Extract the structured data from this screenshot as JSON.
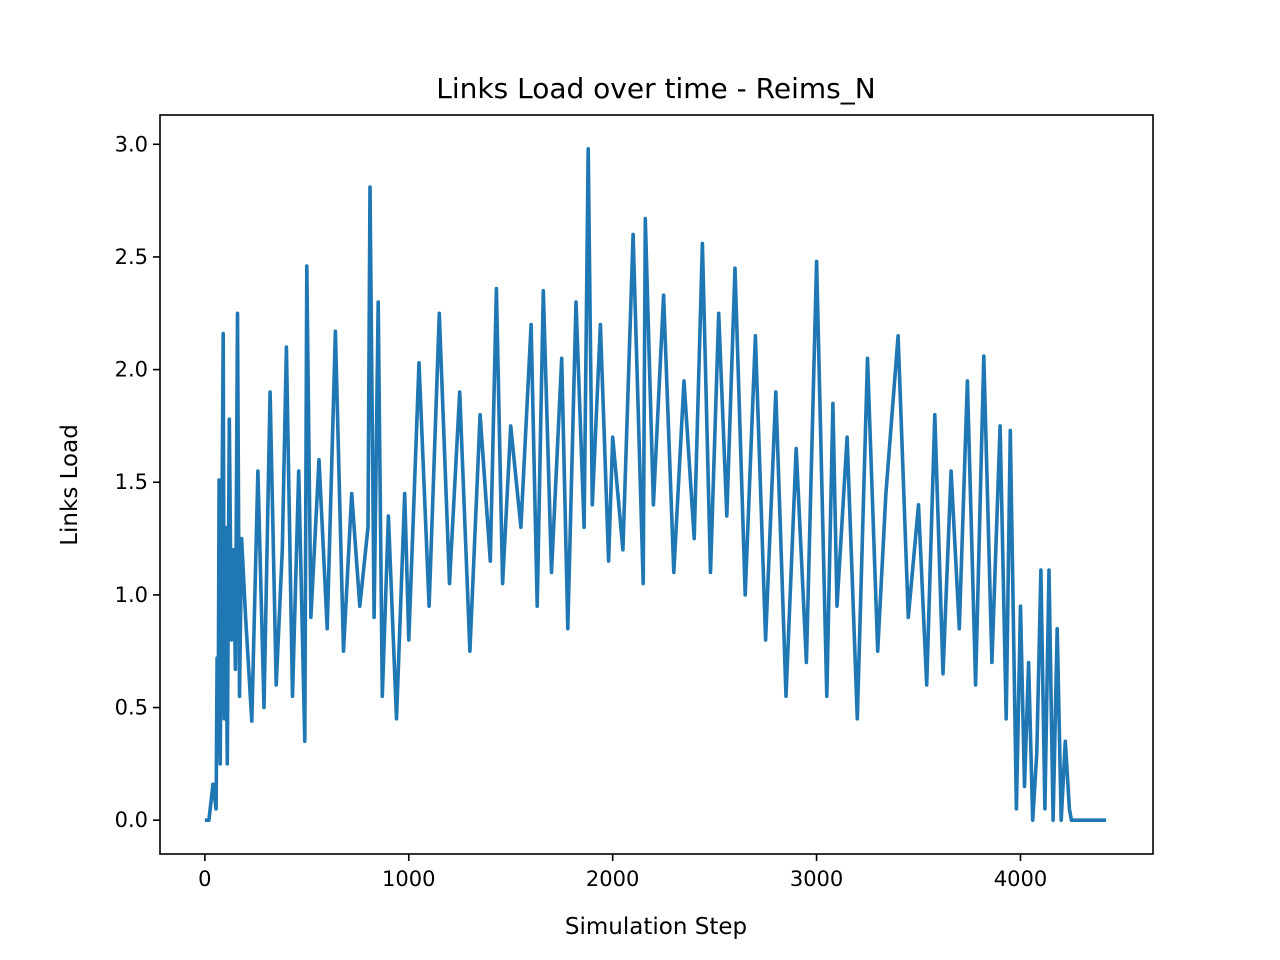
{
  "chart_data": {
    "type": "line",
    "title": "Links Load over time - Reims_N",
    "xlabel": "Simulation Step",
    "ylabel": "Links Load",
    "xlim": [
      -220,
      4650
    ],
    "ylim": [
      -0.15,
      3.13
    ],
    "x_ticks": [
      {
        "value": 0,
        "label": "0"
      },
      {
        "value": 1000,
        "label": "1000"
      },
      {
        "value": 2000,
        "label": "2000"
      },
      {
        "value": 3000,
        "label": "3000"
      },
      {
        "value": 4000,
        "label": "4000"
      }
    ],
    "y_ticks": [
      {
        "value": 0.0,
        "label": "0.0"
      },
      {
        "value": 0.5,
        "label": "0.5"
      },
      {
        "value": 1.0,
        "label": "1.0"
      },
      {
        "value": 1.5,
        "label": "1.5"
      },
      {
        "value": 2.0,
        "label": "2.0"
      },
      {
        "value": 2.5,
        "label": "2.5"
      },
      {
        "value": 3.0,
        "label": "3.0"
      }
    ],
    "grid": false,
    "series": [
      {
        "color": "#1f77b4",
        "x": [
          0,
          20,
          40,
          55,
          60,
          65,
          70,
          75,
          80,
          85,
          90,
          95,
          100,
          110,
          120,
          130,
          140,
          150,
          160,
          170,
          180,
          200,
          230,
          260,
          290,
          320,
          350,
          380,
          400,
          430,
          460,
          490,
          500,
          520,
          560,
          600,
          640,
          680,
          720,
          760,
          800,
          810,
          830,
          850,
          870,
          900,
          940,
          980,
          1000,
          1050,
          1100,
          1150,
          1200,
          1250,
          1300,
          1350,
          1400,
          1430,
          1460,
          1500,
          1550,
          1600,
          1630,
          1660,
          1700,
          1750,
          1780,
          1820,
          1860,
          1880,
          1900,
          1940,
          1980,
          2000,
          2050,
          2100,
          2150,
          2160,
          2200,
          2250,
          2300,
          2350,
          2400,
          2440,
          2480,
          2520,
          2560,
          2600,
          2650,
          2700,
          2750,
          2800,
          2850,
          2900,
          2950,
          3000,
          3050,
          3080,
          3100,
          3150,
          3200,
          3250,
          3300,
          3340,
          3400,
          3450,
          3500,
          3540,
          3580,
          3620,
          3660,
          3700,
          3740,
          3780,
          3820,
          3860,
          3900,
          3930,
          3950,
          3980,
          4000,
          4020,
          4040,
          4060,
          4080,
          4100,
          4120,
          4140,
          4160,
          4180,
          4200,
          4220,
          4240,
          4250,
          4300,
          4420
        ],
        "y": [
          0.0,
          0.0,
          0.16,
          0.05,
          0.72,
          0.3,
          1.51,
          0.25,
          0.95,
          1.5,
          2.16,
          0.45,
          1.3,
          0.25,
          1.78,
          0.8,
          1.2,
          0.67,
          2.25,
          0.55,
          1.25,
          0.9,
          0.44,
          1.55,
          0.5,
          1.9,
          0.6,
          1.2,
          2.1,
          0.55,
          1.55,
          0.35,
          2.46,
          0.9,
          1.6,
          0.85,
          2.17,
          0.75,
          1.45,
          0.95,
          1.3,
          2.81,
          0.9,
          2.3,
          0.55,
          1.35,
          0.45,
          1.45,
          0.8,
          2.03,
          0.95,
          2.25,
          1.05,
          1.9,
          0.75,
          1.8,
          1.15,
          2.36,
          1.05,
          1.75,
          1.3,
          2.2,
          0.95,
          2.35,
          1.1,
          2.05,
          0.85,
          2.3,
          1.3,
          2.98,
          1.4,
          2.2,
          1.15,
          1.7,
          1.2,
          2.6,
          1.05,
          2.67,
          1.4,
          2.33,
          1.1,
          1.95,
          1.25,
          2.56,
          1.1,
          2.25,
          1.35,
          2.45,
          1.0,
          2.15,
          0.8,
          1.9,
          0.55,
          1.65,
          0.7,
          2.48,
          0.55,
          1.85,
          0.95,
          1.7,
          0.45,
          2.05,
          0.75,
          1.45,
          2.15,
          0.9,
          1.4,
          0.6,
          1.8,
          0.65,
          1.55,
          0.85,
          1.95,
          0.6,
          2.06,
          0.7,
          1.75,
          0.45,
          1.73,
          0.05,
          0.95,
          0.15,
          0.7,
          0.0,
          0.3,
          1.11,
          0.05,
          1.11,
          0.0,
          0.85,
          0.0,
          0.35,
          0.05,
          0.0,
          0.0,
          0.0
        ]
      }
    ]
  }
}
